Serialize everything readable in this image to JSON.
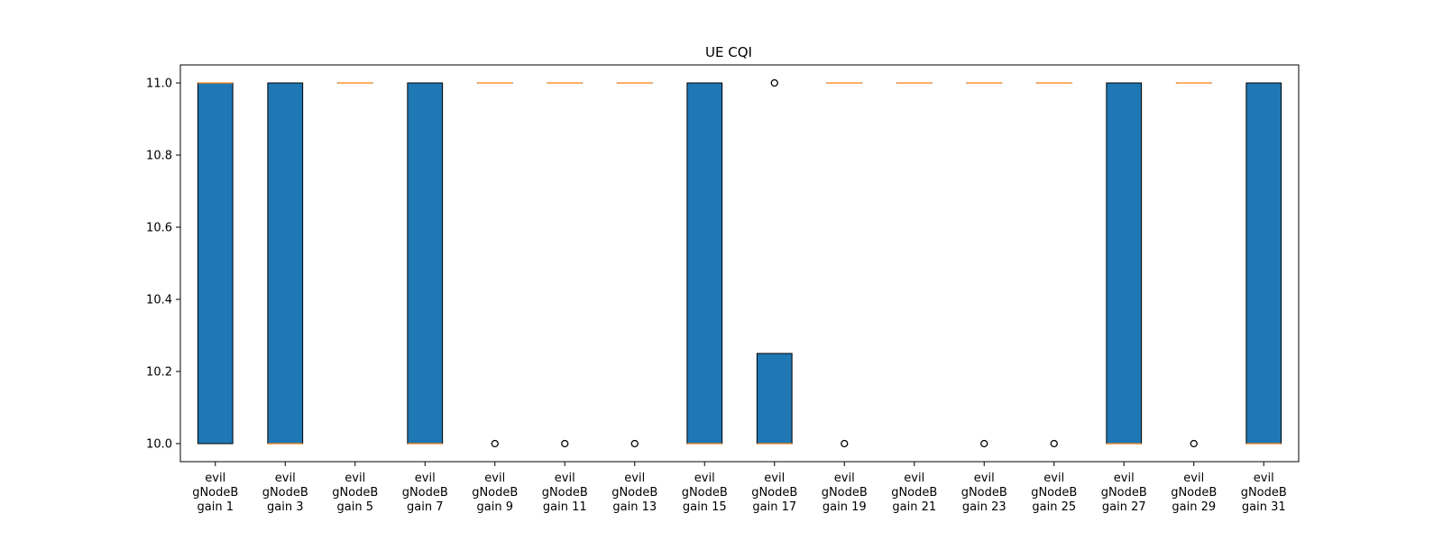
{
  "chart_data": {
    "type": "box",
    "title": "UE CQI",
    "xlabel": "",
    "ylabel": "",
    "ylim": [
      9.95,
      11.05
    ],
    "yticks": [
      10.0,
      10.2,
      10.4,
      10.6,
      10.8,
      11.0
    ],
    "ytick_labels": [
      "10.0",
      "10.2",
      "10.4",
      "10.6",
      "10.8",
      "11.0"
    ],
    "grid": false,
    "box_color": "#1f77b4",
    "median_color": "#ff7f0e",
    "categories": [
      "evil gNodeB gain 1",
      "evil gNodeB gain 3",
      "evil gNodeB gain 5",
      "evil gNodeB gain 7",
      "evil gNodeB gain 9",
      "evil gNodeB gain 11",
      "evil gNodeB gain 13",
      "evil gNodeB gain 15",
      "evil gNodeB gain 17",
      "evil gNodeB gain 19",
      "evil gNodeB gain 21",
      "evil gNodeB gain 23",
      "evil gNodeB gain 25",
      "evil gNodeB gain 27",
      "evil gNodeB gain 29",
      "evil gNodeB gain 31"
    ],
    "category_lines": [
      [
        "evil",
        "gNodeB",
        "gain 1"
      ],
      [
        "evil",
        "gNodeB",
        "gain 3"
      ],
      [
        "evil",
        "gNodeB",
        "gain 5"
      ],
      [
        "evil",
        "gNodeB",
        "gain 7"
      ],
      [
        "evil",
        "gNodeB",
        "gain 9"
      ],
      [
        "evil",
        "gNodeB",
        "gain 11"
      ],
      [
        "evil",
        "gNodeB",
        "gain 13"
      ],
      [
        "evil",
        "gNodeB",
        "gain 15"
      ],
      [
        "evil",
        "gNodeB",
        "gain 17"
      ],
      [
        "evil",
        "gNodeB",
        "gain 19"
      ],
      [
        "evil",
        "gNodeB",
        "gain 21"
      ],
      [
        "evil",
        "gNodeB",
        "gain 23"
      ],
      [
        "evil",
        "gNodeB",
        "gain 25"
      ],
      [
        "evil",
        "gNodeB",
        "gain 27"
      ],
      [
        "evil",
        "gNodeB",
        "gain 29"
      ],
      [
        "evil",
        "gNodeB",
        "gain 31"
      ]
    ],
    "boxes": [
      {
        "q1": 10.0,
        "median": 11.0,
        "q3": 11.0,
        "whisker_low": 10.0,
        "whisker_high": 11.0,
        "outliers": []
      },
      {
        "q1": 10.0,
        "median": 10.0,
        "q3": 11.0,
        "whisker_low": 10.0,
        "whisker_high": 11.0,
        "outliers": []
      },
      {
        "q1": 11.0,
        "median": 11.0,
        "q3": 11.0,
        "whisker_low": 11.0,
        "whisker_high": 11.0,
        "outliers": []
      },
      {
        "q1": 10.0,
        "median": 10.0,
        "q3": 11.0,
        "whisker_low": 10.0,
        "whisker_high": 11.0,
        "outliers": []
      },
      {
        "q1": 11.0,
        "median": 11.0,
        "q3": 11.0,
        "whisker_low": 11.0,
        "whisker_high": 11.0,
        "outliers": [
          10.0
        ]
      },
      {
        "q1": 11.0,
        "median": 11.0,
        "q3": 11.0,
        "whisker_low": 11.0,
        "whisker_high": 11.0,
        "outliers": [
          10.0
        ]
      },
      {
        "q1": 11.0,
        "median": 11.0,
        "q3": 11.0,
        "whisker_low": 11.0,
        "whisker_high": 11.0,
        "outliers": [
          10.0
        ]
      },
      {
        "q1": 10.0,
        "median": 10.0,
        "q3": 11.0,
        "whisker_low": 10.0,
        "whisker_high": 11.0,
        "outliers": []
      },
      {
        "q1": 10.0,
        "median": 10.0,
        "q3": 10.25,
        "whisker_low": 10.0,
        "whisker_high": 10.25,
        "outliers": [
          11.0
        ]
      },
      {
        "q1": 11.0,
        "median": 11.0,
        "q3": 11.0,
        "whisker_low": 11.0,
        "whisker_high": 11.0,
        "outliers": [
          10.0
        ]
      },
      {
        "q1": 11.0,
        "median": 11.0,
        "q3": 11.0,
        "whisker_low": 11.0,
        "whisker_high": 11.0,
        "outliers": []
      },
      {
        "q1": 11.0,
        "median": 11.0,
        "q3": 11.0,
        "whisker_low": 11.0,
        "whisker_high": 11.0,
        "outliers": [
          10.0
        ]
      },
      {
        "q1": 11.0,
        "median": 11.0,
        "q3": 11.0,
        "whisker_low": 11.0,
        "whisker_high": 11.0,
        "outliers": [
          10.0
        ]
      },
      {
        "q1": 10.0,
        "median": 10.0,
        "q3": 11.0,
        "whisker_low": 10.0,
        "whisker_high": 11.0,
        "outliers": []
      },
      {
        "q1": 11.0,
        "median": 11.0,
        "q3": 11.0,
        "whisker_low": 11.0,
        "whisker_high": 11.0,
        "outliers": [
          10.0
        ]
      },
      {
        "q1": 10.0,
        "median": 10.0,
        "q3": 11.0,
        "whisker_low": 10.0,
        "whisker_high": 11.0,
        "outliers": []
      }
    ]
  }
}
